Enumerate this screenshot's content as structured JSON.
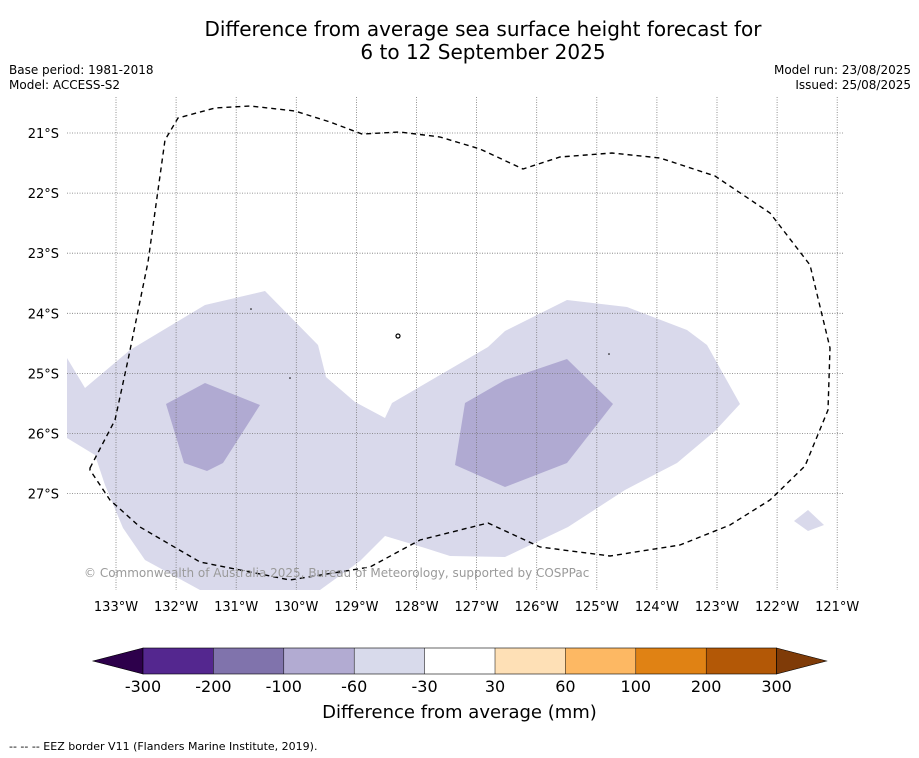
{
  "title_line1": "Difference from average sea surface height forecast for",
  "title_line2": "6 to 12 September 2025",
  "meta_left": {
    "base_period": "Base period: 1981-2018",
    "model": "Model: ACCESS-S2"
  },
  "meta_right": {
    "model_run": "Model run: 23/08/2025",
    "issued": "Issued: 25/08/2025"
  },
  "copyright": "© Commonwealth of Australia 2025, Bureau of Meteorology, supported by COSPPac",
  "colorbar_title": "Difference from average (mm)",
  "footnote": "--  --  -- EEZ border V11 (Flanders Marine Institute, 2019).",
  "map": {
    "lon_labels": [
      "133°W",
      "132°W",
      "131°W",
      "130°W",
      "129°W",
      "128°W",
      "127°W",
      "126°W",
      "125°W",
      "124°W",
      "123°W",
      "122°W",
      "121°W"
    ],
    "lat_labels": [
      "21°S",
      "22°S",
      "23°S",
      "24°S",
      "25°S",
      "26°S",
      "27°S"
    ],
    "lon_range": [
      -133.8,
      -120.8
    ],
    "lat_range": [
      -28.5,
      -20.4
    ],
    "fill_colors": {
      "light": "#d9d9eb",
      "medium": "#b0aad2"
    },
    "border_style": "dashed"
  },
  "colorbar": {
    "tick_labels": [
      "-300",
      "-200",
      "-100",
      "-60",
      "-30",
      "30",
      "60",
      "100",
      "200",
      "300"
    ],
    "colors": [
      "#2d004b",
      "#54278f",
      "#8073ac",
      "#b2abd2",
      "#d8daeb",
      "#ffffff",
      "#fee0b6",
      "#fdb863",
      "#e08214",
      "#b35806",
      "#7f3b08"
    ]
  }
}
